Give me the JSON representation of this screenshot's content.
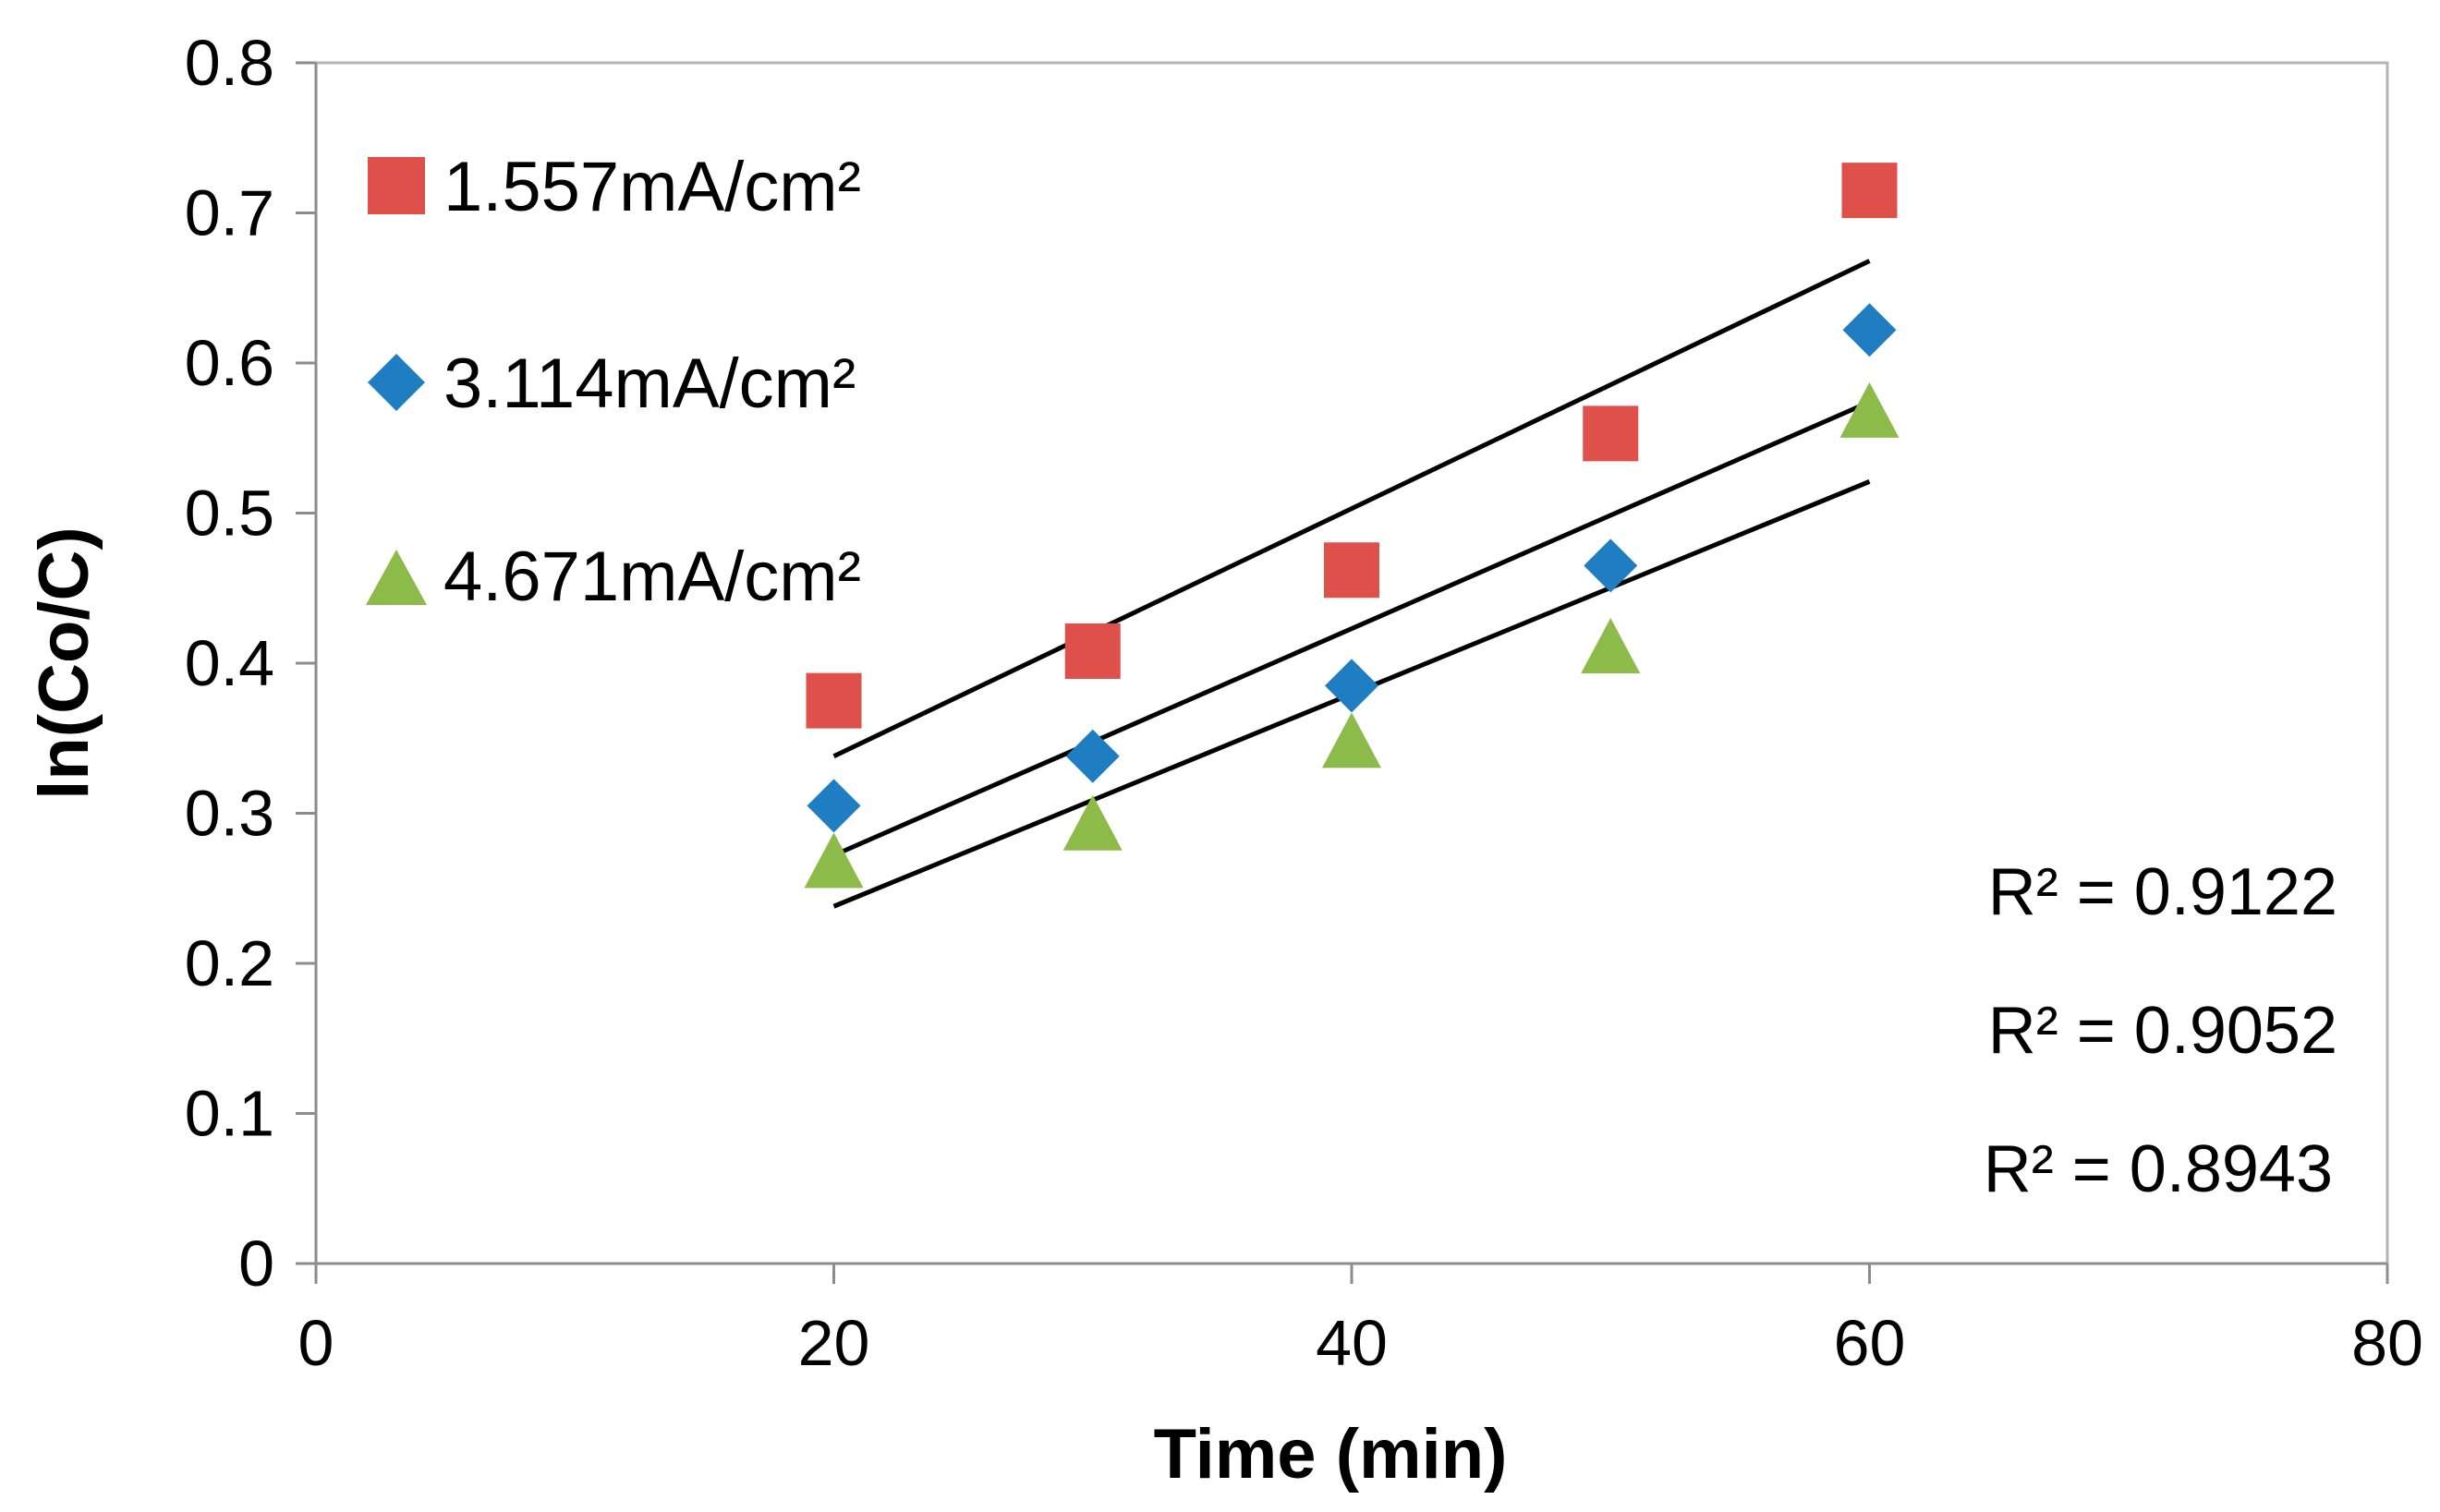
{
  "chart_data": {
    "type": "scatter",
    "title": "",
    "xlabel": "Time (min)",
    "ylabel": "ln(Co/C)",
    "xlim": [
      0,
      80
    ],
    "ylim": [
      0,
      0.8
    ],
    "x_ticks": [
      0,
      20,
      40,
      60,
      80
    ],
    "x_tick_labels": [
      "0",
      "20",
      "40",
      "60",
      "80"
    ],
    "y_ticks": [
      0,
      0.1,
      0.2,
      0.3,
      0.4,
      0.5,
      0.6,
      0.7,
      0.8
    ],
    "y_tick_labels": [
      "0",
      "0.1",
      "0.2",
      "0.3",
      "0.4",
      "0.5",
      "0.6",
      "0.7",
      "0.8"
    ],
    "grid": false,
    "legend_position": "top-left",
    "series": [
      {
        "name": "1.557mA/cm²",
        "marker": "square",
        "color": "#E0504A",
        "x": [
          20,
          30,
          40,
          50,
          60
        ],
        "y": [
          0.375,
          0.408,
          0.462,
          0.553,
          0.715
        ],
        "trendline": {
          "x": [
            20,
            60
          ],
          "y": [
            0.338,
            0.668
          ]
        }
      },
      {
        "name": "3.114mA/cm²",
        "marker": "diamond",
        "color": "#1F7DC2",
        "x": [
          20,
          30,
          40,
          50,
          60
        ],
        "y": [
          0.305,
          0.338,
          0.385,
          0.465,
          0.622
        ],
        "trendline": {
          "x": [
            20,
            60
          ],
          "y": [
            0.272,
            0.574
          ]
        }
      },
      {
        "name": "4.671mA/cm²",
        "marker": "triangle",
        "color": "#8DBB4A",
        "x": [
          20,
          30,
          40,
          50,
          60
        ],
        "y": [
          0.265,
          0.29,
          0.345,
          0.408,
          0.565
        ],
        "trendline": {
          "x": [
            20,
            60
          ],
          "y": [
            0.238,
            0.521
          ]
        }
      }
    ],
    "annotations": [
      "R² = 0.9122",
      "R² = 0.9052",
      "R² = 0.8943"
    ],
    "trendline_color": "#000000"
  }
}
